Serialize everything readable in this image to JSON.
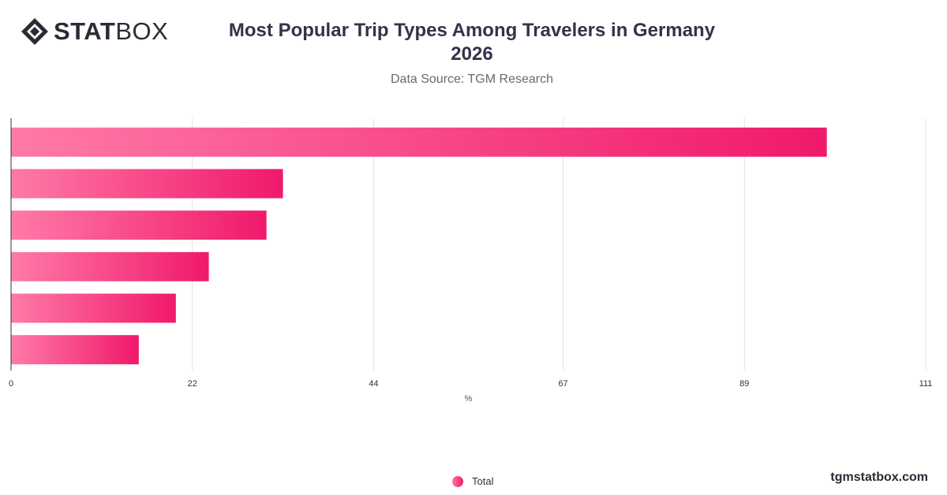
{
  "brand": {
    "logo_bold": "STAT",
    "logo_light": "BOX",
    "website": "tgmstatbox.com"
  },
  "header": {
    "title_line1": "Most Popular Trip Types Among Travelers in Germany",
    "title_line2": "2026",
    "source": "Data Source: TGM Research"
  },
  "legend": {
    "label": "Total"
  },
  "chart_data": {
    "type": "bar",
    "orientation": "horizontal",
    "title": "Most Popular Trip Types Among Travelers in Germany 2026",
    "subtitle": "Data Source: TGM Research",
    "xlabel": "%",
    "ylabel": "",
    "xlim": [
      0,
      111
    ],
    "x_ticks": [
      0,
      22,
      44,
      67,
      89,
      111
    ],
    "categories": [
      "",
      "",
      "",
      "",
      "",
      ""
    ],
    "series": [
      {
        "name": "Total",
        "values": [
          99,
          33,
          31,
          24,
          20,
          15.5
        ]
      }
    ],
    "grid": true,
    "legend_position": "bottom-center",
    "colors": {
      "bar_start": "#ff7aa8",
      "bar_end": "#f0196b",
      "grid": "#e3e3e3",
      "axis": "#333333"
    }
  }
}
